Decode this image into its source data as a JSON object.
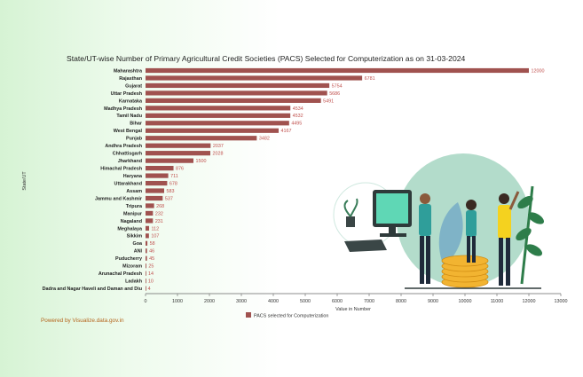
{
  "chart_data": {
    "type": "bar",
    "orientation": "horizontal",
    "title": "State/UT-wise Number of Primary Agricultural Credit Societies (PACS) Selected for Computerization as on 31-03-2024",
    "xlabel": "Value in Number",
    "ylabel": "State/UT",
    "xlim": [
      0,
      13000
    ],
    "xticks": [
      0,
      1000,
      2000,
      3000,
      4000,
      5000,
      6000,
      7000,
      8000,
      9000,
      10000,
      11000,
      12000,
      13000
    ],
    "grid": false,
    "legend_position": "bottom",
    "categories": [
      "Maharashtra",
      "Rajasthan",
      "Gujarat",
      "Uttar Pradesh",
      "Karnataka",
      "Madhya Pradesh",
      "Tamil Nadu",
      "Bihar",
      "West Bengal",
      "Punjab",
      "Andhra Pradesh",
      "Chhattisgarh",
      "Jharkhand",
      "Himachal Pradesh",
      "Haryana",
      "Uttarakhand",
      "Assam",
      "Jammu and Kashmir",
      "Tripura",
      "Manipur",
      "Nagaland",
      "Meghalaya",
      "Sikkim",
      "Goa",
      "ANI",
      "Puducherry",
      "Mizoram",
      "Arunachal Pradesh",
      "Ladakh",
      "Dadra and Nagar Haveli and Daman and Diu"
    ],
    "series": [
      {
        "name": "PACS selected for Computerization",
        "color": "#a0524f",
        "values": [
          12000,
          6781,
          5754,
          5686,
          5491,
          4534,
          4532,
          4495,
          4167,
          3482,
          2037,
          2028,
          1500,
          876,
          711,
          678,
          583,
          537,
          268,
          232,
          231,
          112,
          107,
          58,
          46,
          45,
          25,
          14,
          10,
          4
        ]
      }
    ]
  },
  "footer": {
    "text": "Powered by Visualize.data.gov.in",
    "color": "#b5651d"
  },
  "illustration": {
    "icon": "people-with-computer-and-coins-illustration"
  }
}
